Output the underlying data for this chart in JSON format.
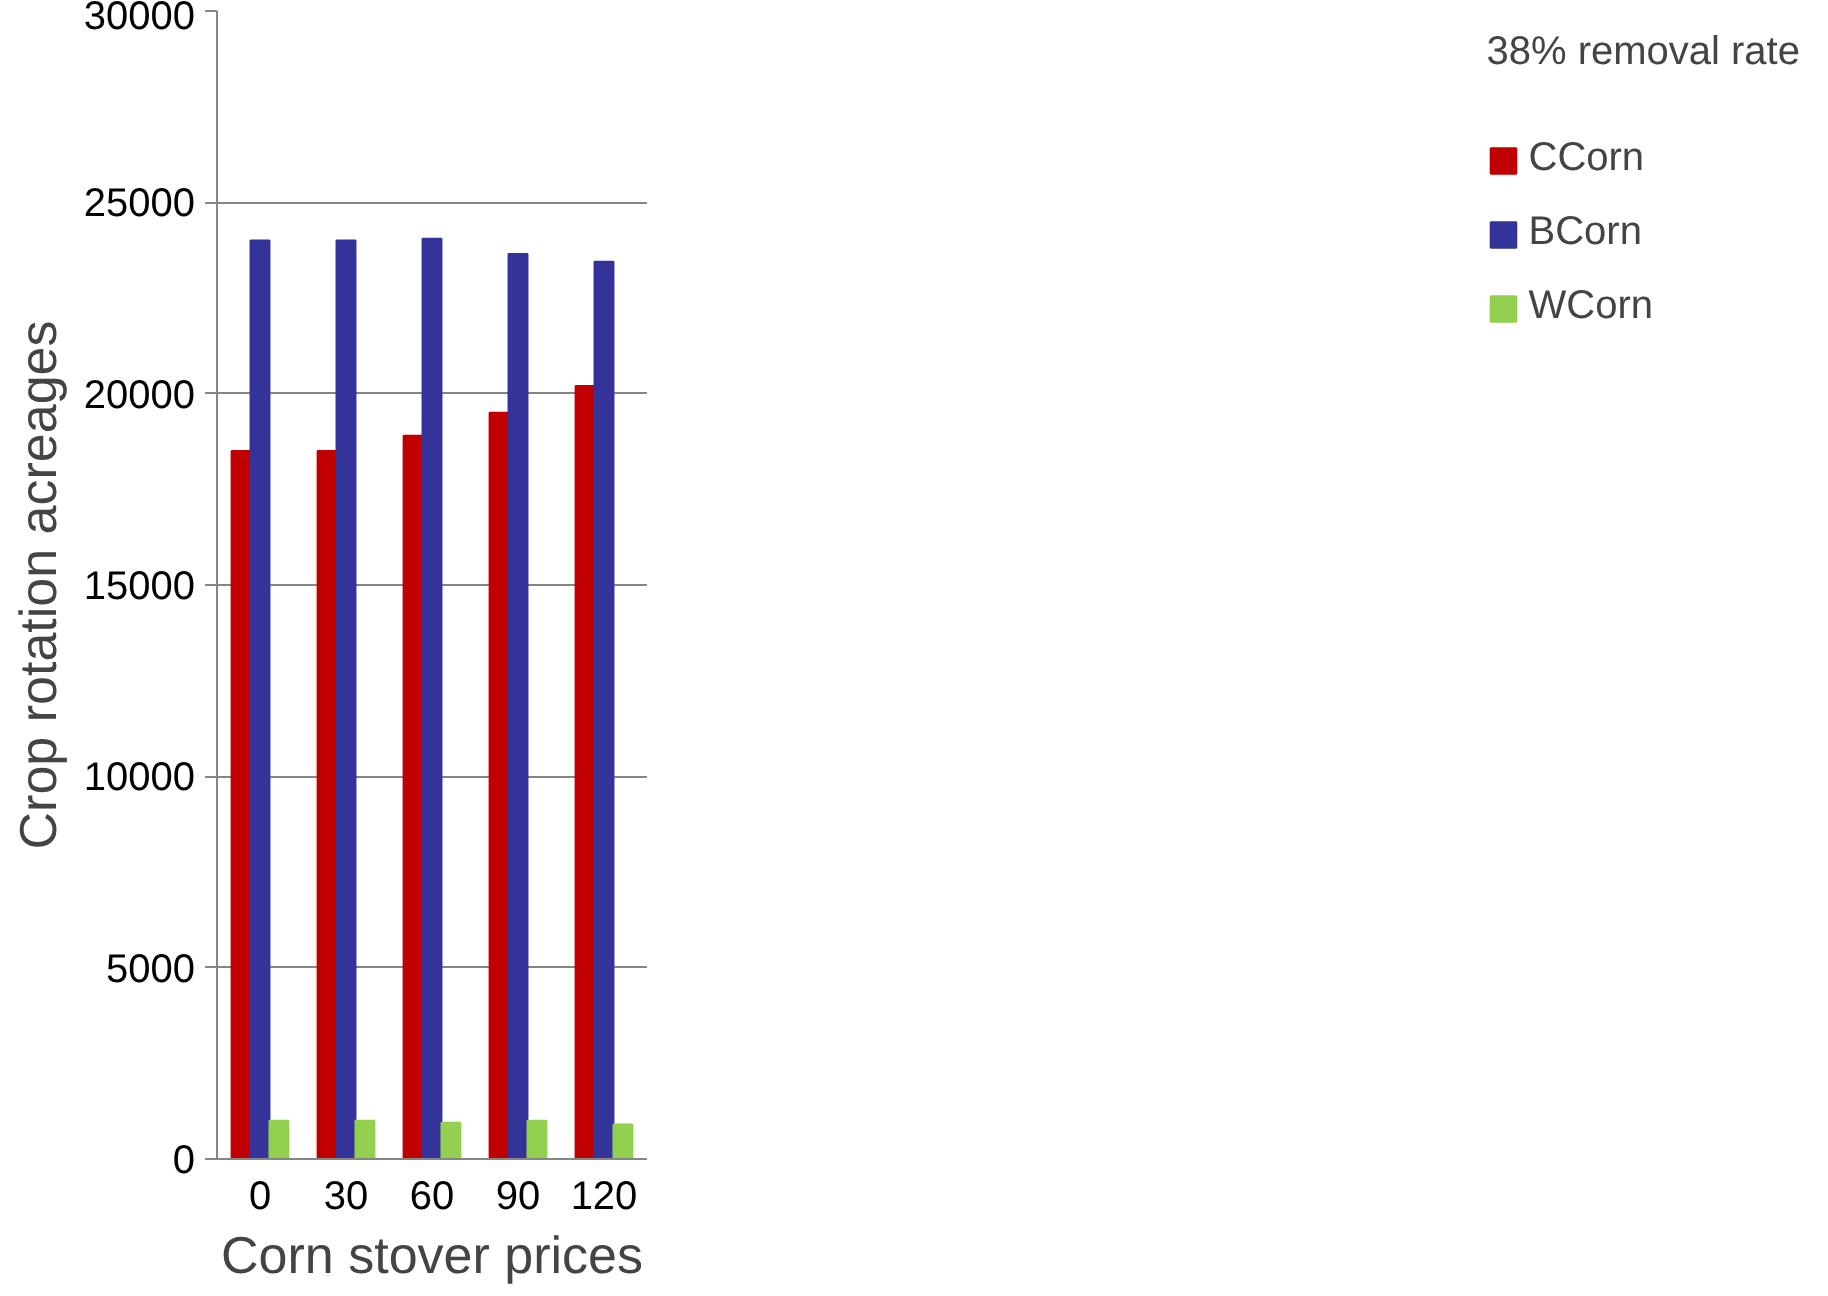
{
  "chart_data": {
    "type": "bar",
    "xlabel": "Corn stover prices",
    "ylabel": "Crop rotation acreages",
    "legend_title": "38% removal rate",
    "categories": [
      "0",
      "30",
      "60",
      "90",
      "120"
    ],
    "series": [
      {
        "name": "CCorn",
        "color": "#c00000",
        "values": [
          18500,
          18500,
          18900,
          19500,
          20200
        ]
      },
      {
        "name": "BCorn",
        "color": "#333399",
        "values": [
          24000,
          24000,
          24050,
          23650,
          23450
        ]
      },
      {
        "name": "WCorn",
        "color": "#92d050",
        "values": [
          1000,
          1000,
          950,
          1000,
          900
        ]
      }
    ],
    "ylim": [
      0,
      30000
    ],
    "yticks": [
      0,
      5000,
      10000,
      15000,
      20000,
      25000,
      30000
    ],
    "grid": "y",
    "legend": "right"
  }
}
